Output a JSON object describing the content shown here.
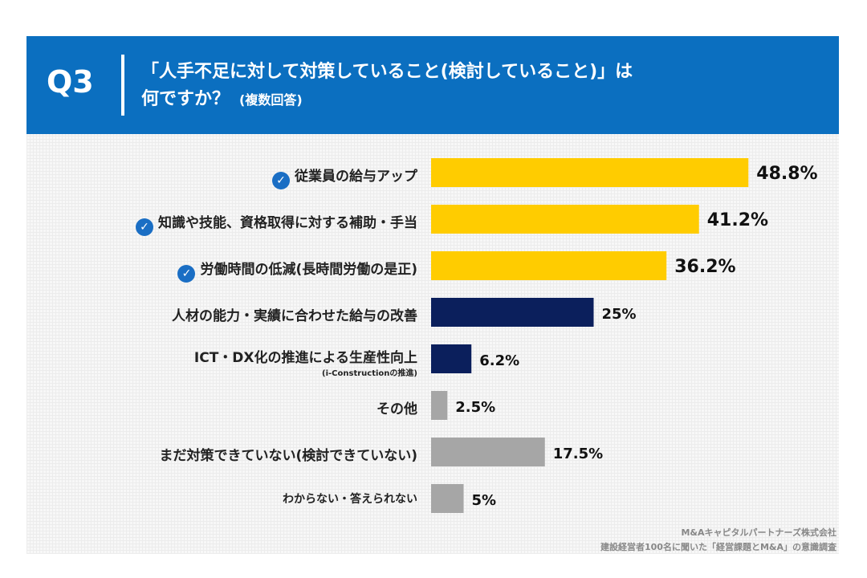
{
  "header": {
    "qnum": "Q3",
    "title_line1": "「人手不足に対して対策していること(検討していること)」は",
    "title_line2": "何ですか？",
    "note": "(複数回答)"
  },
  "colors": {
    "header_bg": "#0b6fc0",
    "bar_highlight": "#ffcc00",
    "bar_navy": "#0b1f5c",
    "bar_gray": "#a6a6a6",
    "check": "#1a6ec4"
  },
  "chart_data": {
    "type": "bar",
    "orientation": "horizontal",
    "unit": "%",
    "categories": [
      "従業員の給与アップ",
      "知識や技能、資格取得に対する補助・手当",
      "労働時間の低減(長時間労働の是正)",
      "人材の能力・実績に合わせた給与の改善",
      "ICT・DX化の推進による生産性向上",
      "その他",
      "まだ対策できていない(検討できていない)",
      "わからない・答えられない"
    ],
    "category_note": [
      "",
      "",
      "",
      "",
      "(i-Constructionの推進)",
      "",
      "",
      ""
    ],
    "values": [
      48.8,
      41.2,
      36.2,
      25,
      6.2,
      2.5,
      17.5,
      5
    ],
    "data_labels": [
      "48.8%",
      "41.2%",
      "36.2%",
      "25%",
      "6.2%",
      "2.5%",
      "17.5%",
      "5%"
    ],
    "bar_colors": [
      "#ffcc00",
      "#ffcc00",
      "#ffcc00",
      "#0b1f5c",
      "#0b1f5c",
      "#a6a6a6",
      "#a6a6a6",
      "#a6a6a6"
    ],
    "checked": [
      true,
      true,
      true,
      false,
      false,
      false,
      false,
      false
    ],
    "xlim": [
      0,
      50
    ],
    "grid": false
  },
  "footer": {
    "line1": "M&Aキャピタルパートナーズ株式会社",
    "line2": "建設経営者100名に聞いた「経営課題とM&A」の意識調査"
  }
}
